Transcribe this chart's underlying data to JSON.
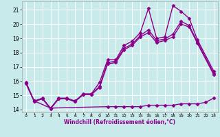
{
  "title": "",
  "xlabel": "Windchill (Refroidissement éolien,°C)",
  "ylabel": "",
  "bg_color": "#c8eaea",
  "grid_color": "#ffffff",
  "line_color": "#8b008b",
  "xmin": -0.5,
  "xmax": 23.5,
  "ymin": 13.8,
  "ymax": 21.6,
  "yticks": [
    14,
    15,
    16,
    17,
    18,
    19,
    20,
    21
  ],
  "xticks": [
    0,
    1,
    2,
    3,
    4,
    5,
    6,
    7,
    8,
    9,
    10,
    11,
    12,
    13,
    14,
    15,
    16,
    17,
    18,
    19,
    20,
    21,
    22,
    23
  ],
  "series": [
    {
      "x": [
        0,
        1,
        2,
        3,
        4,
        5,
        6,
        7,
        8,
        9,
        10,
        11,
        12,
        13,
        14,
        15,
        16,
        17,
        18,
        19,
        20,
        21,
        23
      ],
      "y": [
        15.9,
        14.6,
        14.8,
        14.1,
        14.8,
        14.8,
        14.6,
        15.1,
        15.1,
        15.9,
        17.5,
        17.5,
        18.5,
        18.8,
        19.4,
        21.1,
        19.0,
        19.1,
        21.3,
        20.9,
        20.4,
        18.9,
        16.7
      ],
      "marker": "D",
      "markersize": 2.5,
      "linewidth": 1.0
    },
    {
      "x": [
        0,
        1,
        2,
        3,
        4,
        5,
        6,
        7,
        8,
        9,
        10,
        11,
        12,
        13,
        14,
        15,
        16,
        17,
        18,
        19,
        20,
        21,
        23
      ],
      "y": [
        15.8,
        14.55,
        14.75,
        14.05,
        14.75,
        14.75,
        14.55,
        15.05,
        15.05,
        15.55,
        17.2,
        17.3,
        18.2,
        18.5,
        19.1,
        19.4,
        18.7,
        18.85,
        19.1,
        20.0,
        19.8,
        18.65,
        16.45
      ],
      "marker": "D",
      "markersize": 2.5,
      "linewidth": 1.0
    },
    {
      "x": [
        0,
        1,
        2,
        3,
        4,
        5,
        6,
        7,
        8,
        9,
        10,
        11,
        12,
        13,
        14,
        15,
        16,
        17,
        18,
        19,
        20,
        21,
        23
      ],
      "y": [
        15.85,
        14.57,
        14.77,
        14.07,
        14.77,
        14.77,
        14.57,
        15.07,
        15.07,
        15.62,
        17.3,
        17.4,
        18.3,
        18.6,
        19.2,
        19.6,
        18.85,
        18.95,
        19.3,
        20.2,
        19.9,
        18.75,
        16.55
      ],
      "marker": "D",
      "markersize": 2.5,
      "linewidth": 1.0
    },
    {
      "x": [
        1,
        3,
        10,
        11,
        12,
        13,
        14,
        15,
        16,
        17,
        18,
        19,
        20,
        21,
        22,
        23
      ],
      "y": [
        14.6,
        14.1,
        14.2,
        14.2,
        14.2,
        14.2,
        14.2,
        14.3,
        14.3,
        14.3,
        14.3,
        14.4,
        14.4,
        14.4,
        14.5,
        14.8
      ],
      "marker": "D",
      "markersize": 2.5,
      "linewidth": 1.0
    }
  ]
}
